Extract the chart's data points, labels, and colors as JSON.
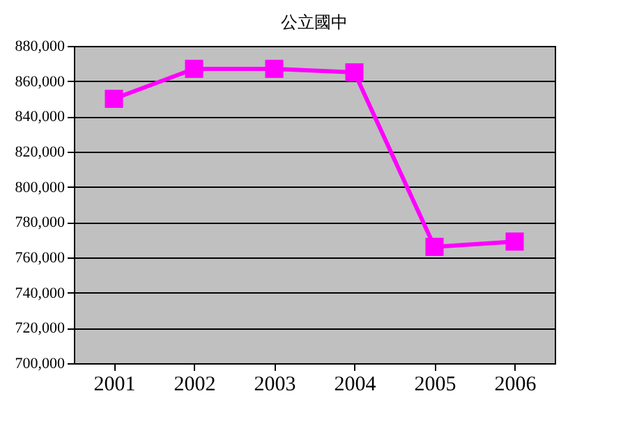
{
  "chart_data": {
    "type": "line",
    "title": "公立國中",
    "categories": [
      "2001",
      "2002",
      "2003",
      "2004",
      "2005",
      "2006"
    ],
    "series": [
      {
        "color": "#ff00ff",
        "values": [
          850000,
          867000,
          867000,
          865000,
          766000,
          769000
        ]
      }
    ],
    "ylim": [
      700000,
      880000
    ],
    "yticks": [
      {
        "value": 700000,
        "label": "700,000"
      },
      {
        "value": 720000,
        "label": "720,000"
      },
      {
        "value": 740000,
        "label": "740,000"
      },
      {
        "value": 760000,
        "label": "760,000"
      },
      {
        "value": 780000,
        "label": "780,000"
      },
      {
        "value": 800000,
        "label": "800,000"
      },
      {
        "value": 820000,
        "label": "820,000"
      },
      {
        "value": 840000,
        "label": "840,000"
      },
      {
        "value": 860000,
        "label": "860,000"
      },
      {
        "value": 880000,
        "label": "880,000"
      }
    ],
    "grid": "y",
    "marker": "square",
    "line_style": "solid",
    "legend": false
  }
}
